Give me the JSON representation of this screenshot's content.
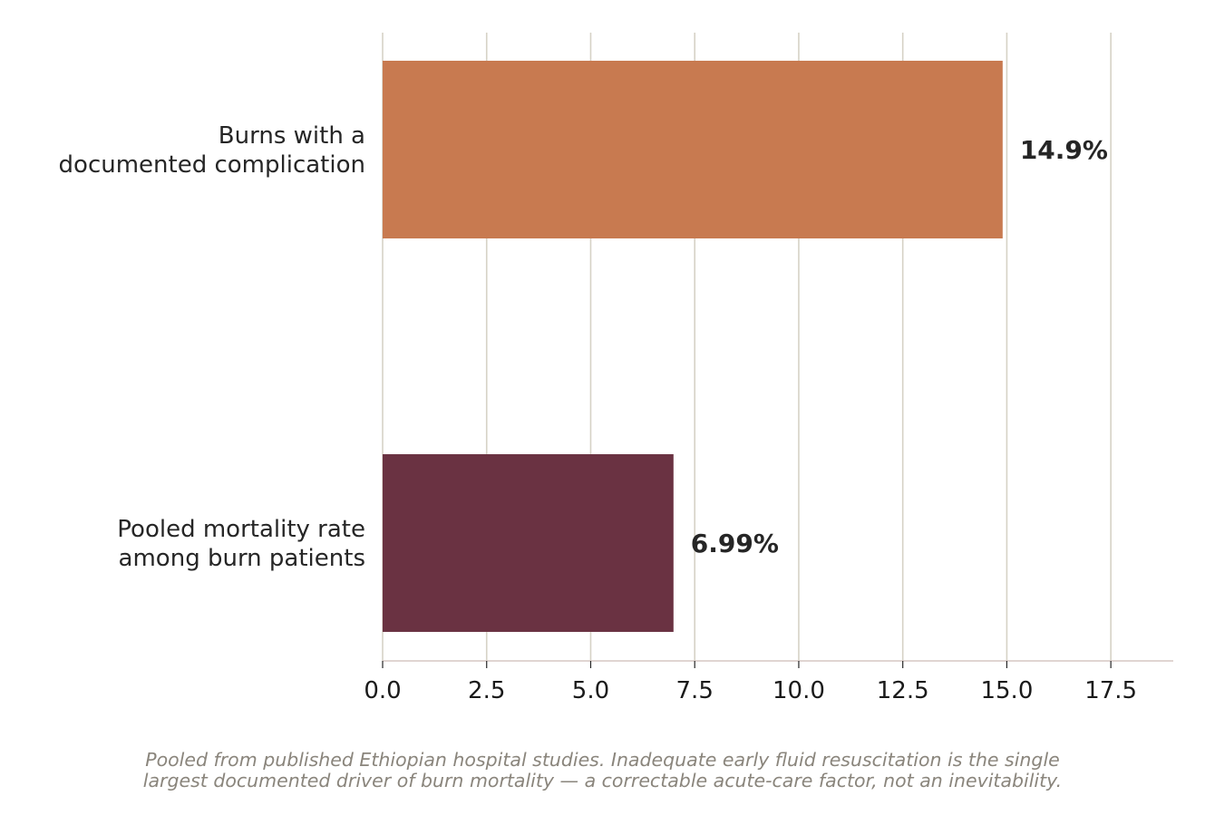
{
  "chart_data": {
    "type": "bar",
    "orientation": "horizontal",
    "categories": [
      [
        "Burns with a",
        "documented complication"
      ],
      [
        "Pooled mortality rate",
        "among burn patients"
      ]
    ],
    "values": [
      14.9,
      6.99
    ],
    "value_labels": [
      "14.9%",
      "6.99%"
    ],
    "colors": [
      "#c87a50",
      "#6a3242"
    ],
    "xlim": [
      0,
      19
    ],
    "xticks": [
      0,
      2.5,
      5,
      7.5,
      10,
      12.5,
      15,
      17.5
    ],
    "xtick_labels": [
      "0.0",
      "2.5",
      "5.0",
      "7.5",
      "10.0",
      "12.5",
      "15.0",
      "17.5"
    ],
    "grid": "vertical",
    "gridColor": "#d6d2c6",
    "axisColor": "#dccfcb",
    "title": "",
    "xlabel": "",
    "ylabel": ""
  },
  "caption": [
    "Pooled from published Ethiopian hospital studies. Inadequate early fluid resuscitation is the single",
    "largest documented driver of burn mortality — a correctable acute-care factor, not an inevitability."
  ]
}
